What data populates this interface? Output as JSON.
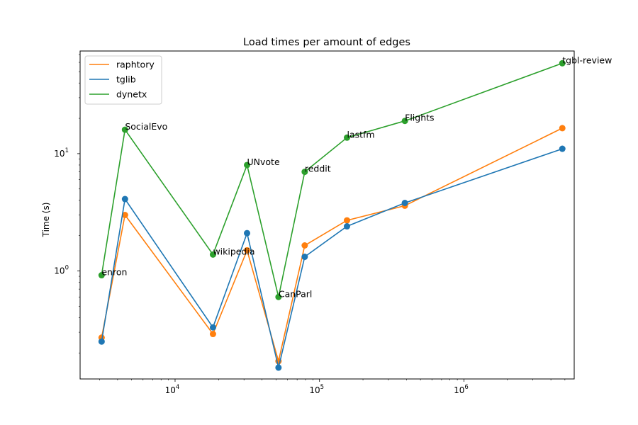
{
  "chart_data": {
    "type": "line",
    "title": "Load times per amount of edges",
    "xlabel": "",
    "ylabel": "Time (s)",
    "xscale": "log",
    "yscale": "log",
    "xlim": [
      2200,
      5800000
    ],
    "ylim": [
      0.12,
      75
    ],
    "grid": false,
    "legend_position": "top-left",
    "x_ticks": [
      {
        "value": 10000,
        "base": "10",
        "exp": "4"
      },
      {
        "value": 100000,
        "base": "10",
        "exp": "5"
      },
      {
        "value": 1000000,
        "base": "10",
        "exp": "6"
      }
    ],
    "y_ticks": [
      {
        "value": 1,
        "base": "10",
        "exp": "0"
      },
      {
        "value": 10,
        "base": "10",
        "exp": "1"
      }
    ],
    "x": [
      3100,
      4500,
      18300,
      31500,
      52000,
      79000,
      155000,
      390000,
      4800000
    ],
    "series": [
      {
        "name": "raphtory",
        "color": "#ff7f0e",
        "values": [
          0.27,
          3.0,
          0.29,
          1.5,
          0.17,
          1.65,
          2.7,
          3.6,
          16.5
        ]
      },
      {
        "name": "tglib",
        "color": "#1f77b4",
        "values": [
          0.25,
          4.1,
          0.33,
          2.1,
          0.15,
          1.32,
          2.4,
          3.8,
          11.0
        ]
      },
      {
        "name": "dynetx",
        "color": "#2ca02c",
        "values": [
          0.92,
          16.0,
          1.38,
          8.0,
          0.6,
          7.0,
          13.7,
          19.0,
          59.0
        ]
      }
    ],
    "annotations": [
      {
        "text": "enron",
        "x": 3100,
        "y": 0.92
      },
      {
        "text": "SocialEvo",
        "x": 4500,
        "y": 16.0
      },
      {
        "text": "wikipedia",
        "x": 18300,
        "y": 1.38
      },
      {
        "text": "UNvote",
        "x": 31500,
        "y": 8.0
      },
      {
        "text": "CanParl",
        "x": 52000,
        "y": 0.6
      },
      {
        "text": "reddit",
        "x": 79000,
        "y": 7.0
      },
      {
        "text": "lastfm",
        "x": 155000,
        "y": 13.7
      },
      {
        "text": "Flights",
        "x": 390000,
        "y": 19.0
      },
      {
        "text": "tgbl-review",
        "x": 4800000,
        "y": 59.0
      }
    ]
  }
}
